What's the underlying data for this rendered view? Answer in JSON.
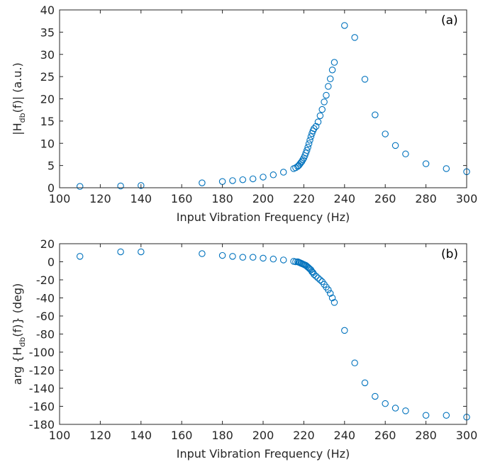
{
  "chart_data": [
    {
      "type": "scatter",
      "panel_label": "(a)",
      "xlabel": "Input Vibration Frequency (Hz)",
      "ylabel_parts": [
        "|H",
        "db",
        "(f)| (a.u.)"
      ],
      "xlim": [
        100,
        300
      ],
      "ylim": [
        0,
        40
      ],
      "xticks": [
        100,
        120,
        140,
        160,
        180,
        200,
        220,
        240,
        260,
        280,
        300
      ],
      "yticks": [
        0,
        5,
        10,
        15,
        20,
        25,
        30,
        35,
        40
      ],
      "grid": false,
      "marker_color": "#0072BD",
      "series": [
        {
          "x": [
            110,
            130,
            140,
            170,
            180,
            185,
            190,
            195,
            200,
            205,
            210,
            215,
            216,
            217,
            217.5,
            218,
            218.5,
            219,
            219.5,
            220,
            220.5,
            221,
            221.5,
            222,
            222.5,
            223,
            223.5,
            224,
            224.5,
            225,
            226,
            227,
            228,
            229,
            230,
            231,
            232,
            233,
            234,
            235,
            240,
            245,
            250,
            255,
            260,
            265,
            270,
            280,
            290,
            300
          ],
          "y": [
            0.3,
            0.4,
            0.5,
            1.1,
            1.4,
            1.6,
            1.8,
            2.0,
            2.4,
            2.9,
            3.5,
            4.3,
            4.5,
            4.8,
            5.0,
            5.3,
            5.6,
            5.9,
            6.3,
            6.7,
            7.2,
            7.8,
            8.4,
            9.1,
            9.9,
            10.7,
            11.5,
            12.2,
            12.8,
            13.3,
            13.8,
            14.8,
            16.2,
            17.6,
            19.3,
            20.8,
            22.8,
            24.5,
            26.5,
            28.2,
            36.5,
            33.8,
            24.4,
            16.4,
            12.1,
            9.5,
            7.6,
            5.4,
            4.3,
            3.6
          ]
        }
      ]
    },
    {
      "type": "scatter",
      "panel_label": "(b)",
      "xlabel": "Input Vibration Frequency (Hz)",
      "ylabel_parts": [
        "arg {H",
        "db",
        "(f)} (deg)"
      ],
      "xlim": [
        100,
        300
      ],
      "ylim": [
        -180,
        20
      ],
      "xticks": [
        100,
        120,
        140,
        160,
        180,
        200,
        220,
        240,
        260,
        280,
        300
      ],
      "yticks": [
        20,
        0,
        -20,
        -40,
        -60,
        -80,
        -100,
        -120,
        -140,
        -160,
        -180
      ],
      "grid": false,
      "marker_color": "#0072BD",
      "series": [
        {
          "x": [
            110,
            130,
            140,
            170,
            180,
            185,
            190,
            195,
            200,
            205,
            210,
            215,
            216,
            217,
            217.5,
            218,
            218.5,
            219,
            219.5,
            220,
            220.5,
            221,
            221.5,
            222,
            222.5,
            223,
            223.5,
            224,
            224.5,
            225,
            226,
            227,
            228,
            229,
            230,
            231,
            232,
            233,
            234,
            235,
            240,
            245,
            250,
            255,
            260,
            265,
            270,
            280,
            290,
            300
          ],
          "y": [
            6,
            11,
            11,
            9,
            7,
            6,
            5,
            5,
            4,
            3,
            2,
            0.5,
            0,
            0,
            -0.5,
            -1,
            -1.5,
            -2,
            -2.5,
            -3,
            -3.5,
            -4,
            -5,
            -6,
            -7,
            -8,
            -9,
            -11,
            -12,
            -14,
            -16,
            -18,
            -20,
            -22,
            -25,
            -28,
            -31,
            -35,
            -40,
            -45,
            -76,
            -112,
            -134,
            -149,
            -157,
            -162,
            -165,
            -170,
            -170,
            -172
          ]
        }
      ]
    }
  ]
}
